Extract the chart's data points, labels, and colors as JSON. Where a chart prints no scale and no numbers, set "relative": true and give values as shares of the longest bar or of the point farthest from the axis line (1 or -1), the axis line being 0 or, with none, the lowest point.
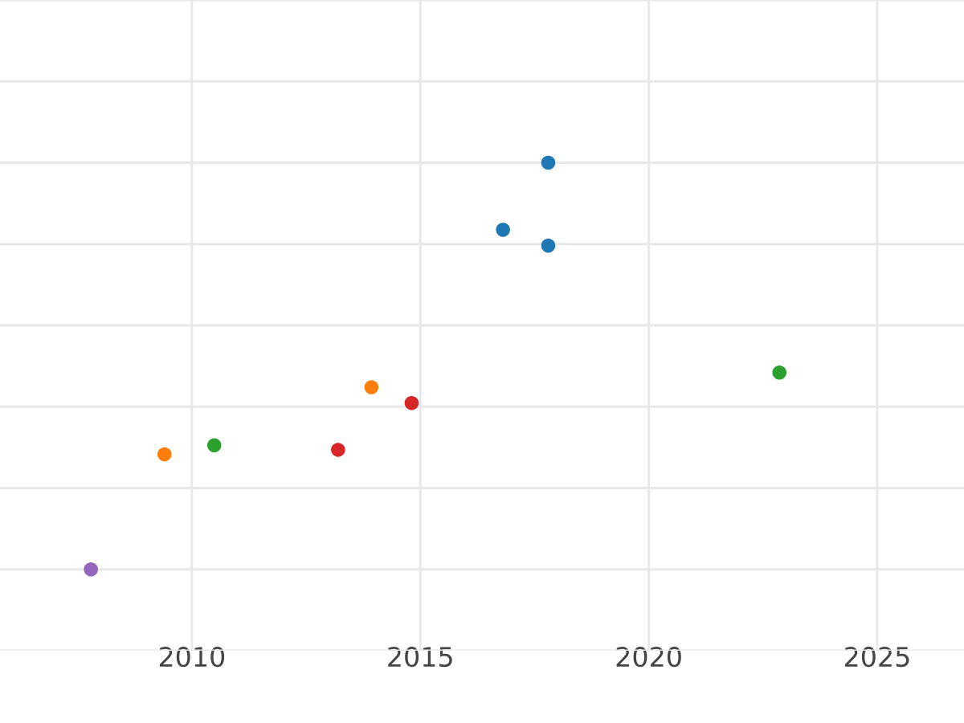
{
  "chart_data": {
    "type": "scatter",
    "relative": true,
    "grid": true,
    "marker": "circle",
    "tick_labels": "x",
    "xlim": [
      2005.8,
      2026.9
    ],
    "xticks": [
      2010,
      2015,
      2020,
      2025
    ],
    "series": [
      {
        "color": "#1f77b4",
        "x": [
          2016.81,
          2017.8,
          2017.8
        ],
        "values": [
          0.835,
          0.796,
          1
        ]
      },
      {
        "color": "#ff7f0e",
        "x": [
          2009.4,
          2013.93
        ],
        "values": [
          0.283,
          0.448
        ]
      },
      {
        "color": "#2ca02c",
        "x": [
          2010.49,
          2022.86
        ],
        "values": [
          0.305,
          0.484
        ]
      },
      {
        "color": "#d62728",
        "x": [
          2013.2,
          2014.81
        ],
        "values": [
          0.294,
          0.409
        ]
      },
      {
        "color": "#9467bd",
        "x": [
          2007.79
        ],
        "values": [
          0
        ]
      }
    ]
  }
}
